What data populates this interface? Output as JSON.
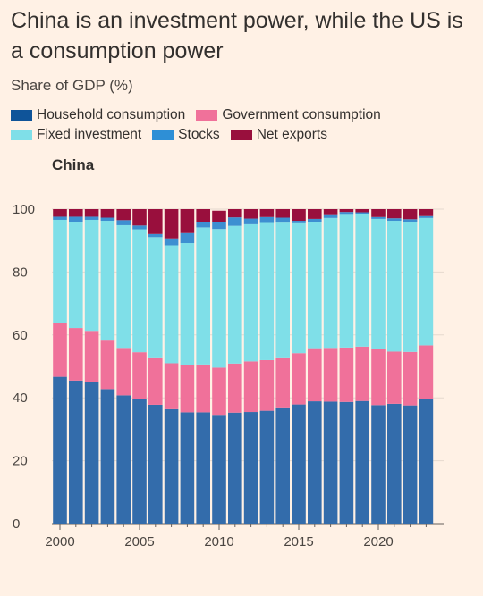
{
  "title": "China is an investment power, while the US is a consumption power",
  "subtitle": "Share of GDP (%)",
  "panel_title": "China",
  "legend": [
    {
      "name": "Household consumption",
      "color": "#0f5499"
    },
    {
      "name": "Government consumption",
      "color": "#f0719a"
    },
    {
      "name": "Fixed investment",
      "color": "#7fdfe8"
    },
    {
      "name": "Stocks",
      "color": "#2e8fd6"
    },
    {
      "name": "Net exports",
      "color": "#990f3d"
    }
  ],
  "chart_data": {
    "type": "bar",
    "stacked": true,
    "title": "China",
    "xlabel": "",
    "ylabel": "",
    "ylim": [
      0,
      100
    ],
    "yticks": [
      0,
      20,
      40,
      60,
      80,
      100
    ],
    "xticks": [
      2000,
      2005,
      2010,
      2015,
      2020
    ],
    "grid": true,
    "categories": [
      2000,
      2001,
      2002,
      2003,
      2004,
      2005,
      2006,
      2007,
      2008,
      2009,
      2010,
      2011,
      2012,
      2013,
      2014,
      2015,
      2016,
      2017,
      2018,
      2019,
      2020,
      2021,
      2022,
      2023
    ],
    "series": [
      {
        "name": "Household consumption",
        "color": "#336cab",
        "values": [
          46.7,
          45.5,
          44.9,
          42.8,
          40.8,
          39.6,
          37.8,
          36.4,
          35.4,
          35.4,
          34.6,
          35.3,
          35.5,
          35.9,
          36.7,
          37.9,
          38.9,
          38.8,
          38.7,
          39.0,
          37.7,
          38.1,
          37.6,
          39.5
        ]
      },
      {
        "name": "Government consumption",
        "color": "#f0719a",
        "values": [
          17.1,
          16.7,
          16.4,
          15.4,
          14.8,
          14.9,
          14.8,
          14.6,
          14.9,
          15.2,
          15.0,
          15.6,
          16.1,
          16.1,
          15.9,
          16.3,
          16.6,
          16.8,
          17.3,
          17.3,
          17.7,
          16.6,
          17.0,
          17.2
        ]
      },
      {
        "name": "Fixed investment",
        "color": "#7fdfe8",
        "values": [
          32.8,
          33.6,
          35.3,
          38.1,
          39.3,
          39.1,
          38.5,
          37.5,
          38.9,
          43.6,
          44.1,
          43.8,
          43.6,
          43.6,
          43.1,
          41.3,
          40.4,
          41.6,
          42.2,
          42.1,
          41.5,
          41.6,
          41.3,
          40.5
        ]
      },
      {
        "name": "Stocks",
        "color": "#3d8fd1",
        "values": [
          1.0,
          1.8,
          1.0,
          1.0,
          1.6,
          1.2,
          1.0,
          2.2,
          3.2,
          1.6,
          2.1,
          2.7,
          1.8,
          1.9,
          1.6,
          0.8,
          1.0,
          0.9,
          0.9,
          0.6,
          0.6,
          0.8,
          0.9,
          0.6
        ]
      },
      {
        "name": "Net exports",
        "color": "#990f3d",
        "values": [
          2.4,
          2.4,
          2.4,
          2.7,
          3.5,
          5.2,
          7.9,
          9.3,
          7.6,
          4.2,
          3.7,
          2.6,
          3.0,
          2.5,
          2.7,
          3.7,
          3.1,
          1.9,
          0.9,
          1.0,
          2.5,
          2.9,
          3.2,
          2.2
        ]
      }
    ]
  }
}
